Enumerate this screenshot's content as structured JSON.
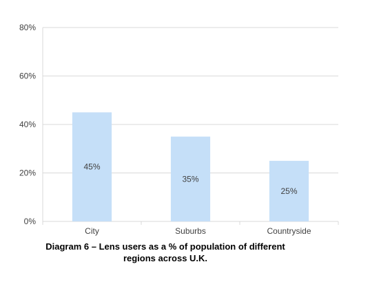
{
  "chart_data": {
    "type": "bar",
    "categories": [
      "City",
      "Suburbs",
      "Countryside"
    ],
    "values": [
      45,
      35,
      25
    ],
    "data_labels": [
      "45%",
      "35%",
      "25%"
    ],
    "y_ticks": [
      "0%",
      "20%",
      "40%",
      "60%",
      "80%"
    ],
    "y_tick_values": [
      0,
      20,
      40,
      60,
      80
    ],
    "ylim": [
      0,
      80
    ],
    "grid": true,
    "bar_color": "#c5dff8",
    "grid_color": "#d9d9d9",
    "title": ""
  },
  "caption": {
    "line1": "Diagram 6 – Lens users as a % of population of different",
    "line2": "regions across U.K."
  }
}
